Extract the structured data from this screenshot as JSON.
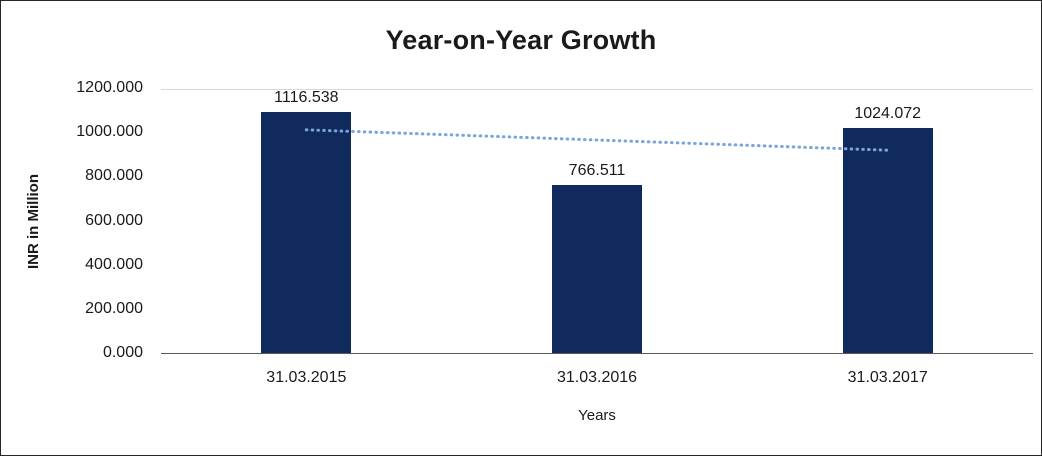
{
  "chart": {
    "title": "Year-on-Year Growth",
    "y_axis_title": "INR in Million",
    "x_axis_title": "Years"
  },
  "chart_data": {
    "type": "bar",
    "title": "Year-on-Year Growth",
    "categories": [
      "31.03.2015",
      "31.03.2016",
      "31.03.2017"
    ],
    "values": [
      1116.538,
      766.511,
      1024.072
    ],
    "data_labels": [
      "1116.538",
      "766.511",
      "1024.072"
    ],
    "xlabel": "Years",
    "ylabel": "INR in Million",
    "ylim": [
      0,
      1200
    ],
    "ytick_step": 200,
    "ytick_labels": [
      "0.000",
      "200.000",
      "400.000",
      "600.000",
      "800.000",
      "1000.000",
      "1200.000"
    ],
    "legend": "none",
    "grid": "top-line-only",
    "bar_color": "#102A5E",
    "trendline": {
      "type": "linear",
      "style": "dotted",
      "color": "#7AA4DB",
      "start_value": 1015.3,
      "end_value": 922.8
    }
  }
}
